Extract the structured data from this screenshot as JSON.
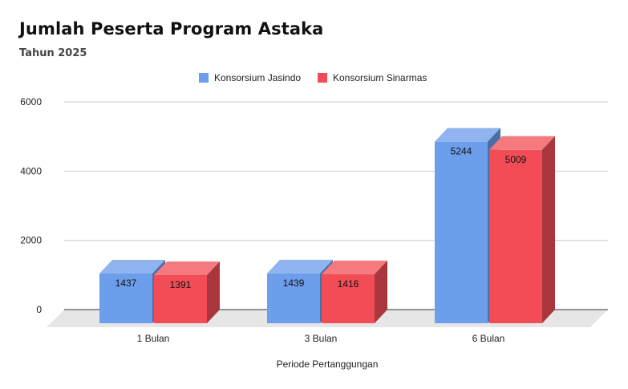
{
  "colors": {
    "series1_front": "#6d9eeb",
    "series1_top": "#8fb4ef",
    "series1_side": "#4a6fa5",
    "series2_front": "#f24d56",
    "series2_top": "#f47a80",
    "series2_side": "#a9363c",
    "grid": "#cccccc",
    "floor": "#e6e6e6"
  },
  "chart_data": {
    "type": "bar",
    "title": "Jumlah Peserta Program Astaka",
    "subtitle": "Tahun 2025",
    "xlabel": "Periode Pertanggungan",
    "ylabel": "",
    "categories": [
      "1 Bulan",
      "3 Bulan",
      "6 Bulan"
    ],
    "series": [
      {
        "name": "Konsorsium Jasindo",
        "values": [
          1437,
          1439,
          5244
        ]
      },
      {
        "name": "Konsorsium Sinarmas",
        "values": [
          1391,
          1416,
          5009
        ]
      }
    ],
    "ylim": [
      0,
      6000
    ],
    "yticks": [
      0,
      2000,
      4000,
      6000
    ],
    "grid": true,
    "legend": "top-center",
    "three_d": true
  }
}
